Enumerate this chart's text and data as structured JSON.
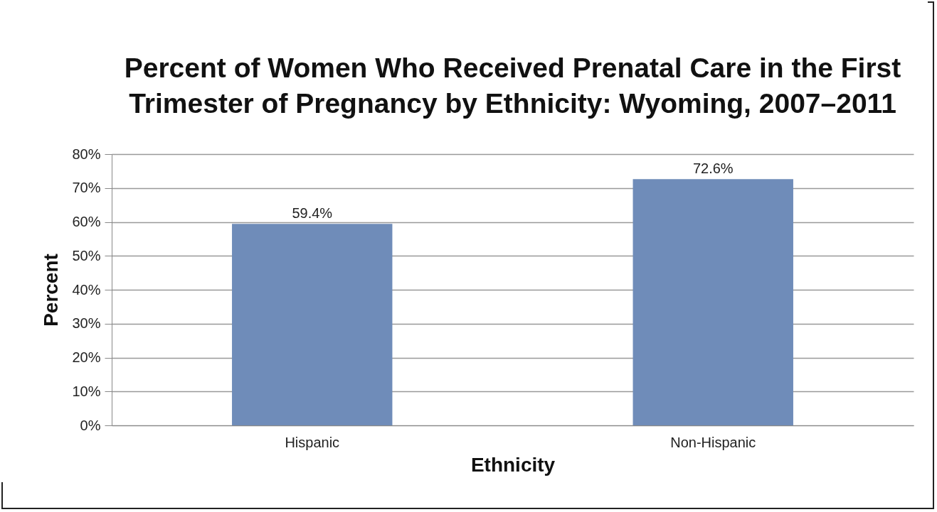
{
  "chart_data": {
    "type": "bar",
    "title": "Percent of Women Who Received Prenatal Care in the First Trimester of Pregnancy by Ethnicity: Wyoming, 2007–2011",
    "xlabel": "Ethnicity",
    "ylabel": "Percent",
    "categories": [
      "Hispanic",
      "Non-Hispanic"
    ],
    "values": [
      59.4,
      72.6
    ],
    "value_labels": [
      "59.4%",
      "72.6%"
    ],
    "color": "#6f8cb9",
    "ylim": [
      0,
      80
    ],
    "yticks": [
      {
        "value": 0,
        "label": "0%"
      },
      {
        "value": 10,
        "label": "10%"
      },
      {
        "value": 20,
        "label": "20%"
      },
      {
        "value": 30,
        "label": "30%"
      },
      {
        "value": 40,
        "label": "40%"
      },
      {
        "value": 50,
        "label": "50%"
      },
      {
        "value": 60,
        "label": "60%"
      },
      {
        "value": 70,
        "label": "70%"
      },
      {
        "value": 80,
        "label": "80%"
      }
    ],
    "grid": "y"
  }
}
